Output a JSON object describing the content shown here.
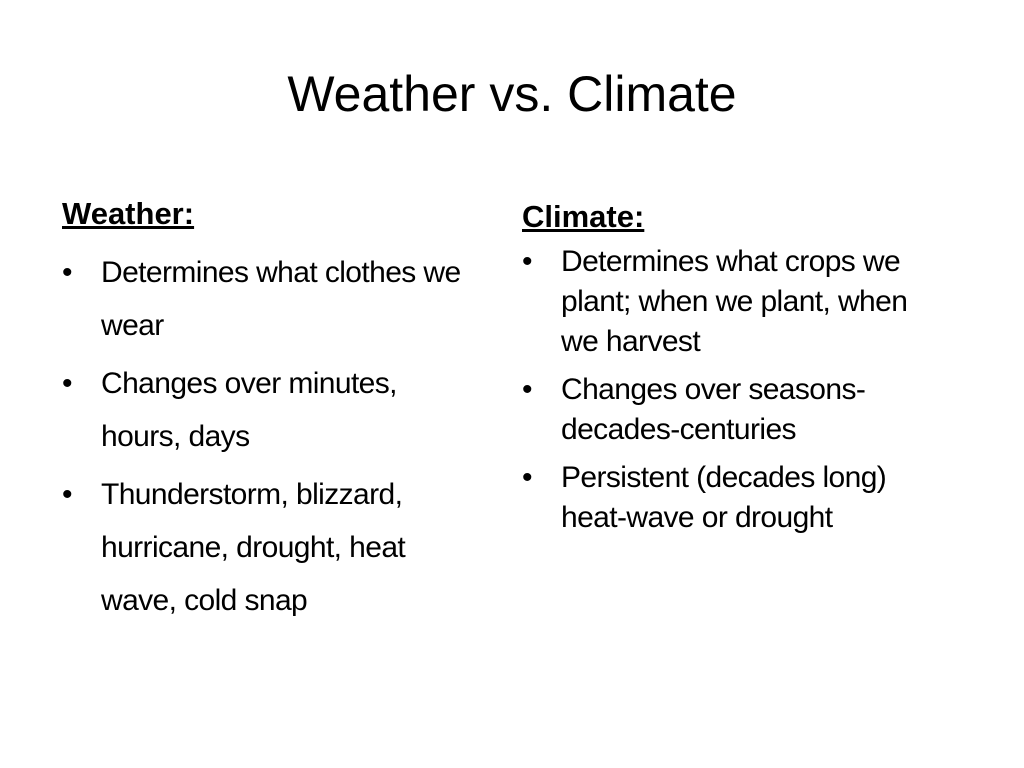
{
  "title": "Weather vs. Climate",
  "columns": [
    {
      "heading": "Weather:",
      "bullets": [
        "Determines what clothes we wear",
        "Changes over minutes, hours, days",
        "Thunderstorm, blizzard, hurricane, drought, heat wave, cold snap"
      ]
    },
    {
      "heading": "Climate:",
      "bullets": [
        "Determines what crops we plant; when we plant, when we harvest",
        "Changes over seasons-decades-centuries",
        "Persistent (decades long) heat-wave or drought"
      ]
    }
  ]
}
